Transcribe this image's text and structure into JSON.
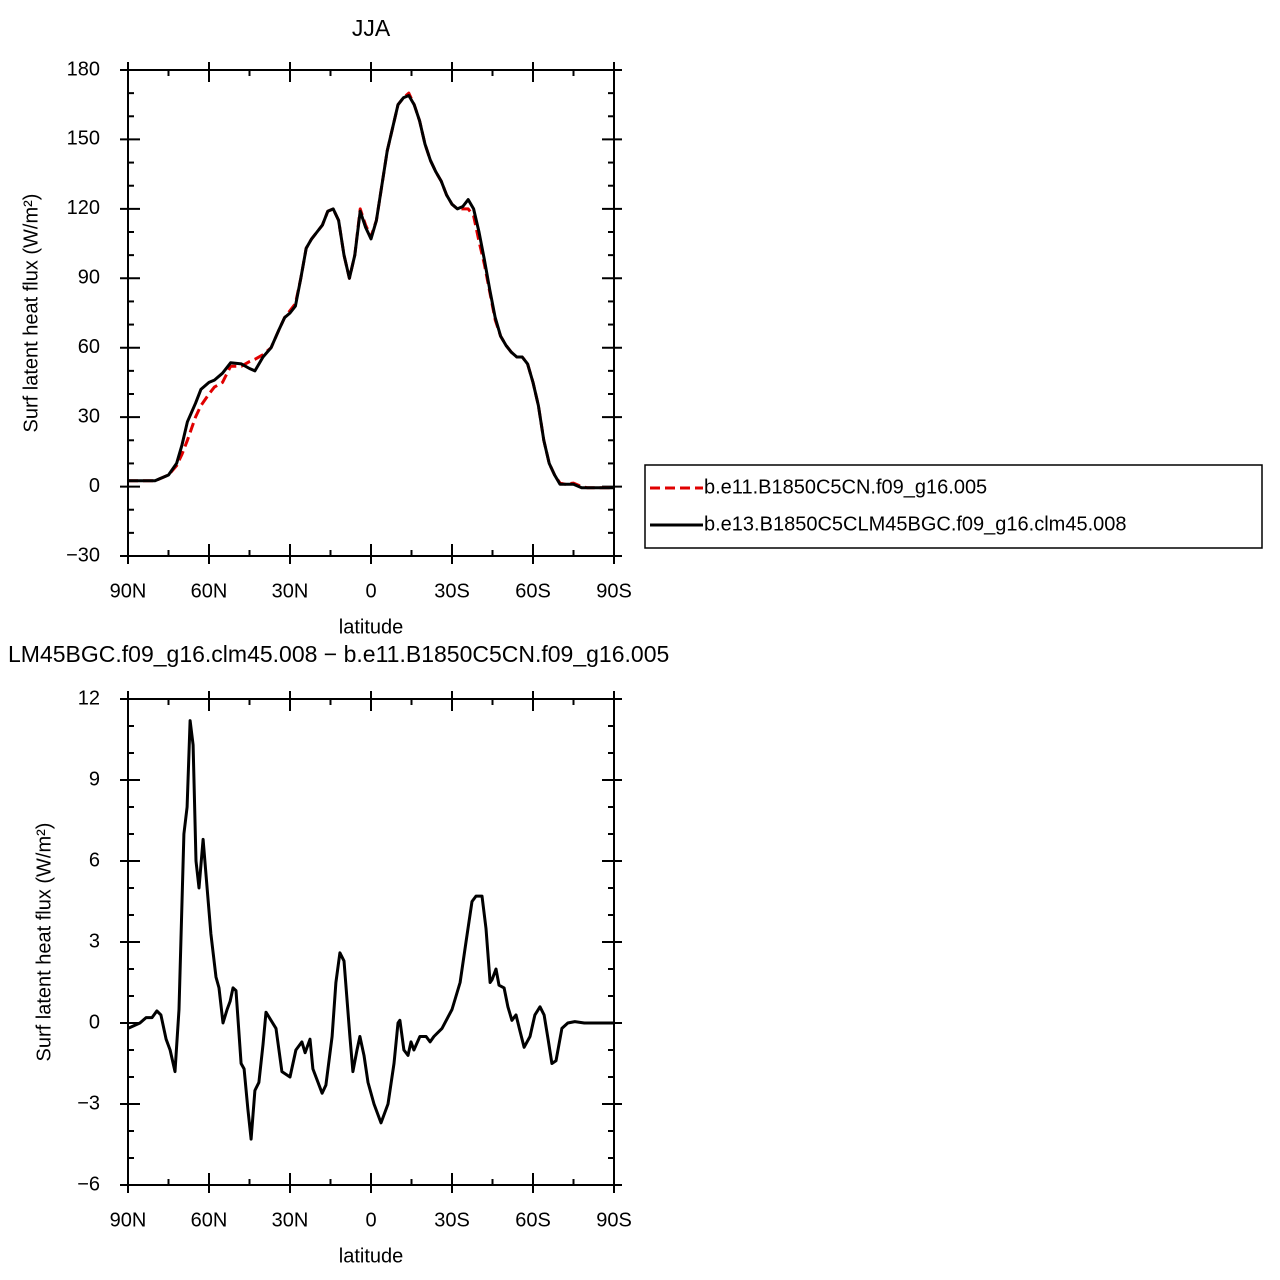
{
  "chart_data": [
    {
      "type": "line",
      "title": "JJA",
      "xlabel": "latitude",
      "ylabel": "Surf latent heat flux (W/m²)",
      "xlim": [
        90,
        -90
      ],
      "ylim": [
        -30,
        180
      ],
      "xticks": [
        {
          "value": 90,
          "label": "90N"
        },
        {
          "value": 60,
          "label": "60N"
        },
        {
          "value": 30,
          "label": "30N"
        },
        0,
        {
          "value": -30,
          "label": "30S"
        },
        {
          "value": -60,
          "label": "60S"
        },
        {
          "value": -90,
          "label": "90S"
        }
      ],
      "xticks_minor": [
        75,
        45,
        15,
        -15,
        -45,
        -75
      ],
      "yticks": [
        {
          "value": -30,
          "label": "−30"
        },
        0,
        30,
        60,
        90,
        120,
        150,
        180
      ],
      "yticks_minor": [
        -20,
        -10,
        10,
        20,
        40,
        50,
        70,
        80,
        100,
        110,
        130,
        140,
        160,
        170
      ],
      "legend": "right",
      "x": [
        90,
        80,
        75,
        72,
        70,
        68,
        65,
        63,
        60,
        58,
        55,
        52,
        48,
        45,
        43,
        40,
        37,
        34,
        32,
        30,
        28,
        26,
        24,
        22,
        20,
        18,
        16,
        14,
        12,
        10,
        8,
        6,
        4,
        2,
        0,
        -2,
        -4,
        -6,
        -8,
        -10,
        -12,
        -14,
        -16,
        -18,
        -20,
        -22,
        -24,
        -26,
        -28,
        -30,
        -32,
        -34,
        -36,
        -38,
        -40,
        -42,
        -44,
        -46,
        -48,
        -50,
        -52,
        -54,
        -56,
        -58,
        -60,
        -62,
        -64,
        -66,
        -68,
        -70,
        -72,
        -75,
        -78,
        -80,
        -85,
        -90
      ],
      "series": [
        {
          "name": "b.e11.B1850C5CN.f09_g16.005",
          "color": "#e00000",
          "dash": true,
          "values": [
            2.5,
            2.5,
            5,
            9,
            14,
            20,
            30,
            35,
            40,
            43,
            45,
            52,
            52,
            54,
            55,
            57,
            60,
            68,
            73,
            76,
            79,
            90,
            103,
            107,
            110,
            113,
            119,
            120,
            115,
            100,
            90,
            100,
            120,
            113,
            108,
            115,
            130,
            145,
            155,
            165,
            168,
            170,
            165,
            158,
            148,
            141,
            136,
            132,
            126,
            122,
            120,
            120,
            120,
            117,
            106,
            96,
            84,
            72,
            65,
            61,
            58,
            56,
            56,
            53,
            45,
            35,
            20,
            10,
            5,
            1.5,
            1,
            1.5,
            0,
            -0.5,
            -0.5,
            -0.5
          ]
        },
        {
          "name": "b.e13.B1850C5CLM45BGC.f09_g16.clm45.008",
          "color": "#000000",
          "dash": false,
          "values": [
            2.5,
            2.5,
            5,
            10,
            18,
            28,
            36,
            42,
            45,
            46,
            49,
            53.5,
            53,
            51,
            50,
            56,
            60,
            68,
            73,
            75,
            78,
            90,
            103,
            107,
            110,
            113,
            119,
            120,
            115,
            100,
            90,
            100,
            119,
            112,
            107,
            115,
            130,
            145,
            155,
            165,
            168,
            169,
            165,
            158,
            148,
            141,
            136,
            132,
            126,
            122,
            120,
            121,
            124,
            120,
            110,
            98,
            85,
            73,
            65,
            61,
            58,
            56,
            56,
            53,
            45,
            35,
            20,
            10,
            5,
            1,
            1,
            1,
            -0.5,
            -0.5,
            -0.5,
            -0.5
          ]
        }
      ]
    },
    {
      "type": "line",
      "title": "LM45BGC.f09_g16.clm45.008 − b.e11.B1850C5CN.f09_g16.005",
      "xlabel": "latitude",
      "ylabel": "Surf latent heat flux (W/m²)",
      "xlim": [
        90,
        -90
      ],
      "ylim": [
        -6,
        12
      ],
      "xticks": [
        {
          "value": 90,
          "label": "90N"
        },
        {
          "value": 60,
          "label": "60N"
        },
        {
          "value": 30,
          "label": "30N"
        },
        0,
        {
          "value": -30,
          "label": "30S"
        },
        {
          "value": -60,
          "label": "60S"
        },
        {
          "value": -90,
          "label": "90S"
        }
      ],
      "xticks_minor": [
        75,
        45,
        15,
        -15,
        -45,
        -75
      ],
      "yticks": [
        {
          "value": -6,
          "label": "−6"
        },
        {
          "value": -3,
          "label": "−3"
        },
        0,
        3,
        6,
        9,
        12
      ],
      "yticks_minor": [
        -5,
        -4,
        -2,
        -1,
        1,
        2,
        4,
        5,
        7,
        8,
        10,
        11
      ],
      "x": [
        90,
        85.6,
        83.3,
        81.1,
        79.3,
        77.8,
        75.9,
        74.4,
        72.6,
        71.1,
        69.3,
        68.1,
        67,
        65.9,
        64.8,
        63.7,
        62.2,
        60.7,
        59.3,
        57.4,
        56.3,
        54.8,
        53.3,
        52.2,
        51.1,
        50,
        48.1,
        47,
        45.6,
        44.4,
        43,
        41.5,
        40,
        38.9,
        35.2,
        33,
        30,
        27.8,
        25.6,
        24.4,
        22.6,
        21.5,
        18.1,
        16.7,
        14.4,
        13,
        11.5,
        10,
        7.8,
        6.7,
        5.2,
        4.1,
        2.6,
        1.1,
        -1.1,
        -3.7,
        -6.3,
        -8.5,
        -10,
        -10.7,
        -12.2,
        -13.7,
        -14.8,
        -15.9,
        -18.1,
        -20.4,
        -21.9,
        -23.3,
        -26.3,
        -30,
        -33,
        -35.2,
        -37.4,
        -38.9,
        -41.1,
        -42.6,
        -44.1,
        -44.8,
        -46.3,
        -47.4,
        -49.3,
        -50.7,
        -52.2,
        -53.7,
        -55.2,
        -56.7,
        -58.9,
        -60.7,
        -62.6,
        -64.1,
        -65.6,
        -67,
        -68.5,
        -70.7,
        -72.9,
        -75.5,
        -79,
        -90
      ],
      "series": [
        {
          "color": "#000000",
          "dash": false,
          "values": [
            -0.2,
            0,
            0.2,
            0.2,
            0.45,
            0.3,
            -0.6,
            -1,
            -1.8,
            0.5,
            7,
            8,
            11.2,
            10.3,
            6,
            5,
            6.8,
            5,
            3.3,
            1.7,
            1.3,
            0,
            0.5,
            0.8,
            1.3,
            1.2,
            -1.5,
            -1.7,
            -3.2,
            -4.3,
            -2.5,
            -2.2,
            -0.8,
            0.4,
            -0.2,
            -1.8,
            -2,
            -1,
            -0.7,
            -1.1,
            -0.6,
            -1.7,
            -2.6,
            -2.3,
            -0.5,
            1.5,
            2.6,
            2.3,
            -0.5,
            -1.8,
            -1,
            -0.5,
            -1.2,
            -2.2,
            -3,
            -3.7,
            -3,
            -1.5,
            0,
            0.1,
            -1,
            -1.2,
            -0.7,
            -1,
            -0.5,
            -0.5,
            -0.7,
            -0.5,
            -0.2,
            0.5,
            1.5,
            3,
            4.5,
            4.7,
            4.7,
            3.5,
            1.5,
            1.6,
            2,
            1.4,
            1.3,
            0.6,
            0.1,
            0.3,
            -0.3,
            -0.9,
            -0.5,
            0.3,
            0.6,
            0.3,
            -0.6,
            -1.5,
            -1.4,
            -0.2,
            0,
            0.05,
            0,
            0
          ]
        }
      ]
    }
  ]
}
